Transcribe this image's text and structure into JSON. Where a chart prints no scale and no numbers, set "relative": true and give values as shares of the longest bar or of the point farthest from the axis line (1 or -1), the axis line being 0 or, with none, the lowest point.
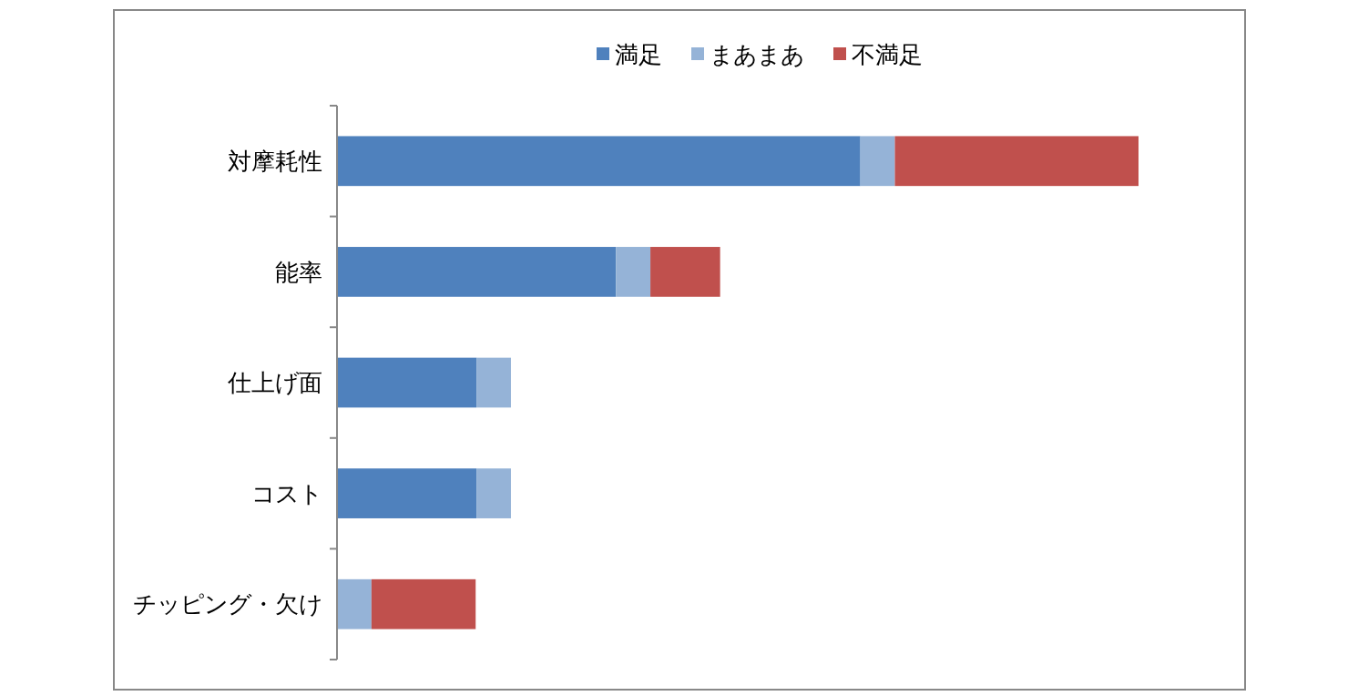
{
  "chart_data": {
    "type": "bar",
    "orientation": "horizontal",
    "stacked": true,
    "relative": true,
    "legend": "top",
    "categories": [
      "対摩耗性",
      "能率",
      "仕上げ面",
      "コスト",
      "チッピング・欠け"
    ],
    "series": [
      {
        "name": "満足",
        "color": "#4f81bd",
        "values": [
          0.653,
          0.348,
          0.174,
          0.174,
          0
        ]
      },
      {
        "name": "まあまあ",
        "color": "#95b3d7",
        "values": [
          0.043,
          0.043,
          0.043,
          0.043,
          0.043
        ]
      },
      {
        "name": "不満足",
        "color": "#c0504d",
        "values": [
          0.304,
          0.087,
          0,
          0,
          0.13
        ]
      }
    ]
  }
}
